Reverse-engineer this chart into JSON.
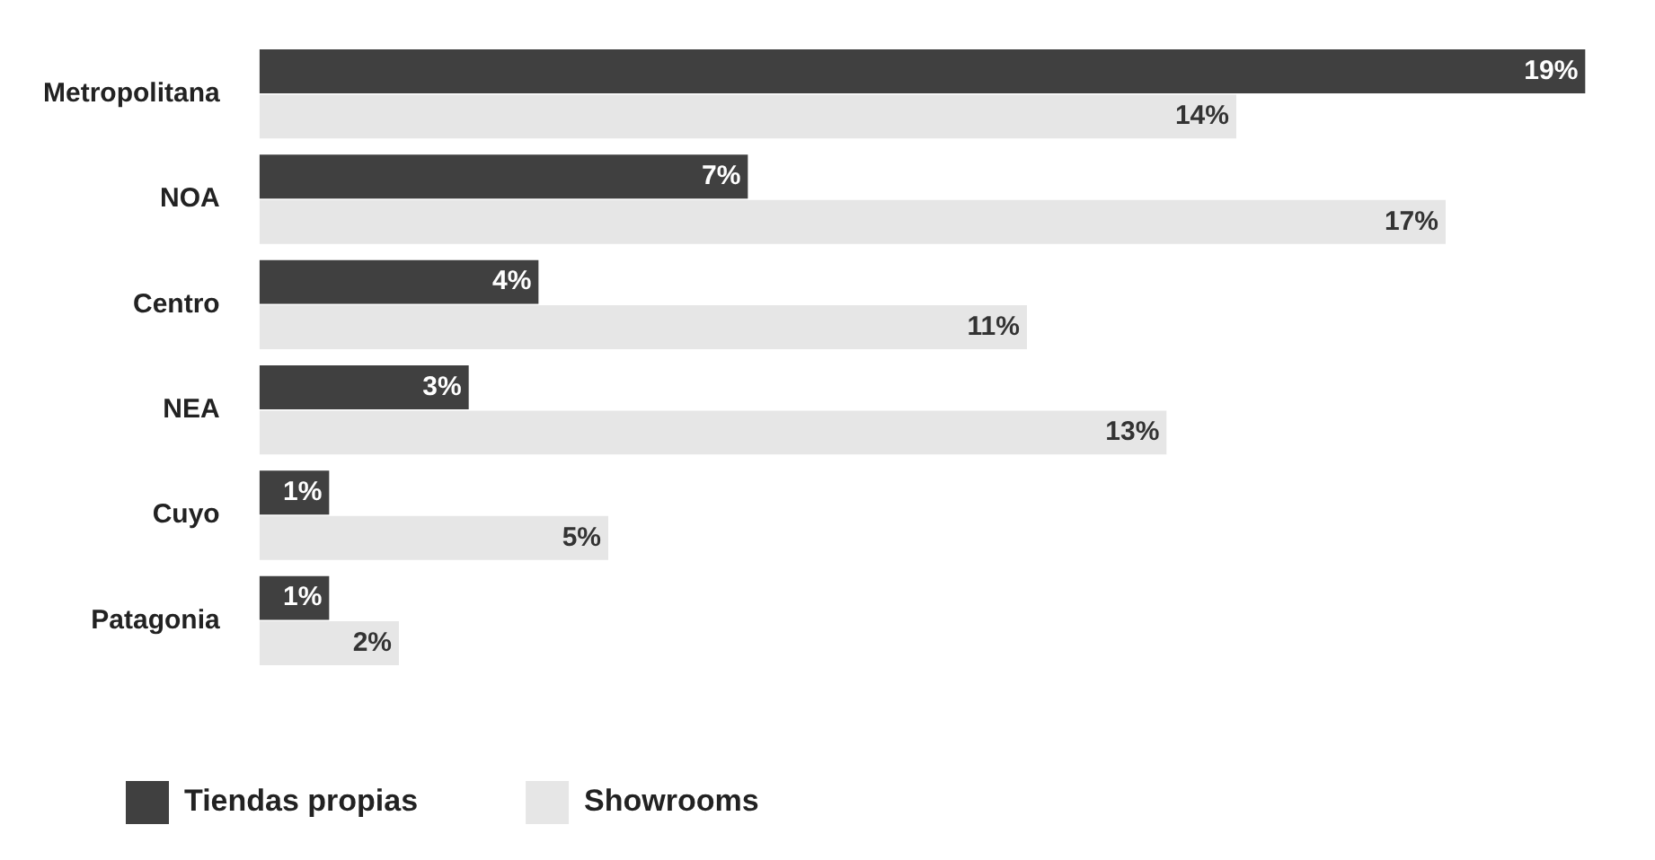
{
  "chart_data": {
    "type": "bar",
    "orientation": "horizontal",
    "categories": [
      "Metropolitana",
      "NOA",
      "Centro",
      "NEA",
      "Cuyo",
      "Patagonia"
    ],
    "series": [
      {
        "name": "Tiendas propias",
        "color": "#404040",
        "values": [
          19,
          7,
          4,
          3,
          1,
          1
        ],
        "value_labels": [
          "19%",
          "7%",
          "4%",
          "3%",
          "1%",
          "1%"
        ]
      },
      {
        "name": "Showrooms",
        "color": "#e6e6e6",
        "values": [
          14,
          17,
          11,
          13,
          5,
          2
        ],
        "value_labels": [
          "14%",
          "17%",
          "11%",
          "13%",
          "5%",
          "2%"
        ]
      }
    ],
    "legend": "bottom left",
    "tick_labels": "y"
  }
}
